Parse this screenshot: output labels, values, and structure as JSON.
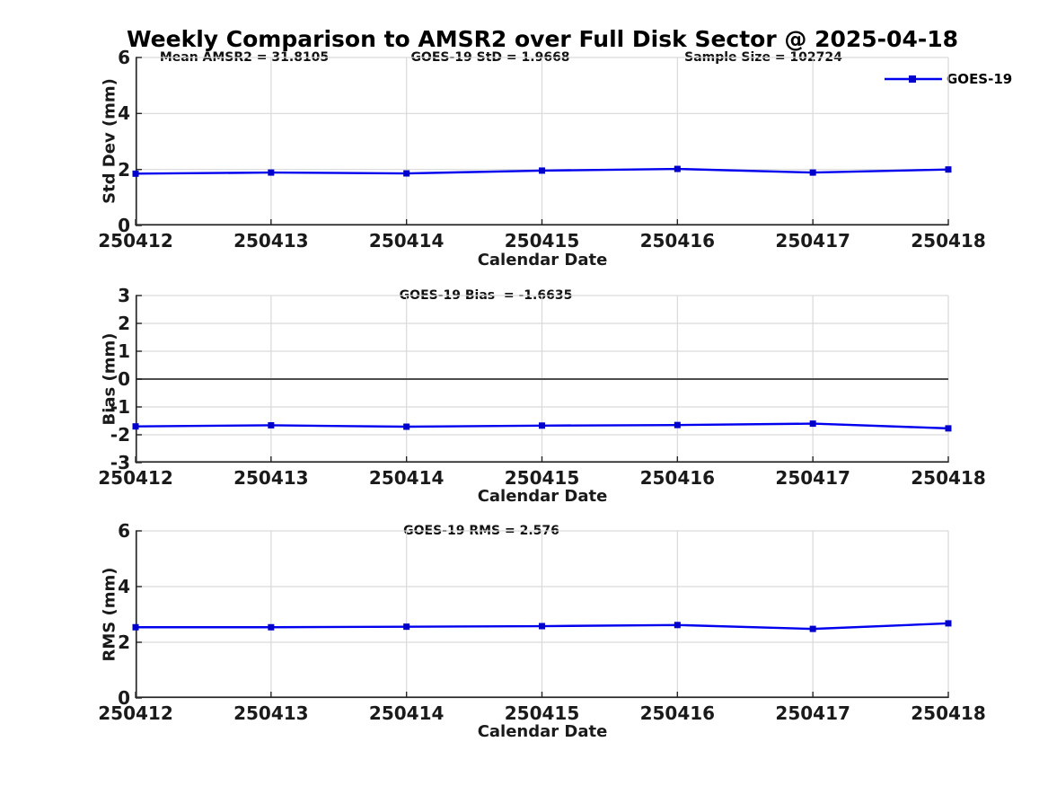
{
  "figure": {
    "title": "Weekly Comparison to AMSR2 over Full Disk Sector @ 2025-04-18",
    "background": "#ffffff"
  },
  "legend": {
    "label": "GOES-19",
    "marker": "square"
  },
  "colors": {
    "line": "#0000EE",
    "marker": "#0000CC",
    "grid": "#D9D9D9",
    "axis": "#262626",
    "zero_line": "#4D4D4D",
    "text": "#1A1A1A"
  },
  "chart_data": [
    {
      "type": "line",
      "categories": [
        "250412",
        "250413",
        "250414",
        "250415",
        "250416",
        "250417",
        "250418"
      ],
      "series": [
        {
          "name": "GOES-19",
          "values": [
            1.85,
            1.89,
            1.86,
            1.96,
            2.02,
            1.89,
            2.0
          ]
        }
      ],
      "annotations": [
        "Mean AMSR2 = 31.8105",
        "GOES-19 StD = 1.9668",
        "Sample Size = 102724"
      ],
      "xlabel": "Calendar Date",
      "ylabel": "Std Dev (mm)",
      "ylim": [
        0,
        6
      ],
      "yticks": [
        0,
        2,
        4,
        6
      ],
      "grid": true,
      "zero_line": false,
      "legend_position": "top-right"
    },
    {
      "type": "line",
      "categories": [
        "250412",
        "250413",
        "250414",
        "250415",
        "250416",
        "250417",
        "250418"
      ],
      "series": [
        {
          "name": "GOES-19",
          "values": [
            -1.7,
            -1.66,
            -1.71,
            -1.67,
            -1.65,
            -1.6,
            -1.77
          ]
        }
      ],
      "annotations": [
        "GOES-19 Bias  = -1.6635"
      ],
      "xlabel": "Calendar Date",
      "ylabel": "Bias (mm)",
      "ylim": [
        -3,
        3
      ],
      "yticks": [
        3,
        2,
        1,
        0,
        -1,
        -2,
        -3
      ],
      "grid": true,
      "zero_line": true,
      "legend_position": null
    },
    {
      "type": "line",
      "categories": [
        "250412",
        "250413",
        "250414",
        "250415",
        "250416",
        "250417",
        "250418"
      ],
      "series": [
        {
          "name": "GOES-19",
          "values": [
            2.54,
            2.54,
            2.56,
            2.58,
            2.62,
            2.48,
            2.68
          ]
        }
      ],
      "annotations": [
        "GOES-19 RMS = 2.576"
      ],
      "xlabel": "Calendar Date",
      "ylabel": "RMS (mm)",
      "ylim": [
        0,
        6
      ],
      "yticks": [
        0,
        2,
        4,
        6
      ],
      "grid": true,
      "zero_line": false,
      "legend_position": null
    }
  ]
}
